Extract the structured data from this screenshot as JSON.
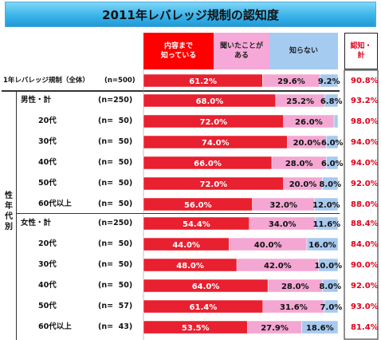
{
  "title": "2011年レバレッジ規制の認知度",
  "legend": {
    "known": "内容まで\n知っている",
    "heard": "聞いたことが\nある",
    "unknown": "知らない",
    "awareness": "認知・\n計"
  },
  "group_label": "性\n年\n代\n別",
  "colors": {
    "known": "#e8202f",
    "heard": "#f3a7d2",
    "unknown": "#a7c9ef",
    "awareness_text": "#e0001a"
  },
  "chart_data": {
    "type": "bar",
    "orientation": "horizontal-stacked-100",
    "title": "2011年レバレッジ規制の認知度",
    "categories": [
      "1年レバレッジ規制（全体）",
      "男性・計",
      "20代",
      "30代",
      "40代",
      "50代",
      "60代以上",
      "女性・計",
      "20代",
      "30代",
      "40代",
      "50代",
      "60代以上"
    ],
    "n": [
      "(n=500)",
      "(n=250)",
      "(n=  50)",
      "(n=  50)",
      "(n=  50)",
      "(n=  50)",
      "(n=  50)",
      "(n=250)",
      "(n=  50)",
      "(n=  50)",
      "(n=  50)",
      "(n=  57)",
      "(n=  43)"
    ],
    "series": [
      {
        "name": "内容まで知っている",
        "values": [
          61.2,
          68.0,
          72.0,
          74.0,
          66.0,
          72.0,
          56.0,
          54.4,
          44.0,
          48.0,
          64.0,
          61.4,
          53.5
        ]
      },
      {
        "name": "聞いたことがある",
        "values": [
          29.6,
          25.2,
          26.0,
          20.0,
          28.0,
          20.0,
          32.0,
          34.0,
          40.0,
          42.0,
          28.0,
          31.6,
          27.9
        ]
      },
      {
        "name": "知らない",
        "values": [
          9.2,
          6.8,
          2.0,
          6.0,
          6.0,
          8.0,
          12.0,
          11.6,
          16.0,
          10.0,
          8.0,
          7.0,
          18.6
        ]
      }
    ],
    "value_labels": [
      [
        "61.2%",
        "29.6%",
        "9.2%"
      ],
      [
        "68.0%",
        "25.2%",
        "6.8%"
      ],
      [
        "72.0%",
        "26.0%",
        ""
      ],
      [
        "74.0%",
        "20.0%",
        "6.0%"
      ],
      [
        "66.0%",
        "28.0%",
        "6.0%"
      ],
      [
        "72.0%",
        "20.0%",
        "8.0%"
      ],
      [
        "56.0%",
        "32.0%",
        "12.0%"
      ],
      [
        "54.4%",
        "34.0%",
        "11.6%"
      ],
      [
        "44.0%",
        "40.0%",
        "16.0%"
      ],
      [
        "48.0%",
        "42.0%",
        "10.0%"
      ],
      [
        "64.0%",
        "28.0%",
        "8.0%"
      ],
      [
        "61.4%",
        "31.6%",
        "7.0%"
      ],
      [
        "53.5%",
        "27.9%",
        "18.6%"
      ]
    ],
    "awareness_total": [
      "90.8%",
      "93.2%",
      "98.0%",
      "94.0%",
      "94.0%",
      "92.0%",
      "88.0%",
      "88.4%",
      "84.0%",
      "90.0%",
      "92.0%",
      "93.0%",
      "81.4%"
    ],
    "xlim": [
      0,
      100
    ]
  }
}
